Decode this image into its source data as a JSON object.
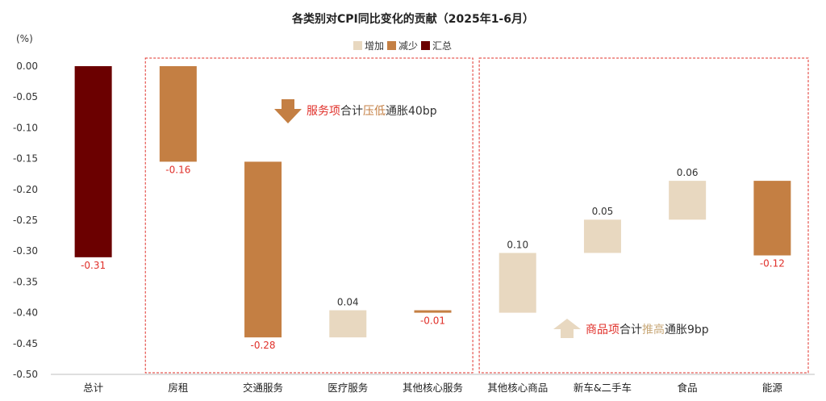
{
  "chart_data": {
    "type": "bar",
    "subtype": "waterfall",
    "title": "各类别对CPI同比变化的贡献（2025年1-6月）",
    "y_unit": "(%)",
    "ylim": [
      -0.5,
      0.0
    ],
    "yticks": [
      "0.00",
      "-0.05",
      "-0.10",
      "-0.15",
      "-0.20",
      "-0.25",
      "-0.30",
      "-0.35",
      "-0.40",
      "-0.45",
      "-0.50"
    ],
    "legend": [
      {
        "name": "增加",
        "color": "#e8d8c0"
      },
      {
        "name": "减少",
        "color": "#c47f43"
      },
      {
        "name": "汇总",
        "color": "#6b0000"
      }
    ],
    "legend_position": "top-center",
    "grid": false,
    "bars": [
      {
        "category": "总计",
        "start": 0.0,
        "end": -0.31,
        "kind": "total",
        "label": "-0.31"
      },
      {
        "category": "房租",
        "start": 0.0,
        "end": -0.155,
        "kind": "decrease",
        "label": "-0.16"
      },
      {
        "category": "交通服务",
        "start": -0.155,
        "end": -0.44,
        "kind": "decrease",
        "label": "-0.28"
      },
      {
        "category": "医疗服务",
        "start": -0.44,
        "end": -0.396,
        "kind": "increase",
        "label": "0.04"
      },
      {
        "category": "其他核心服务",
        "start": -0.396,
        "end": -0.4,
        "kind": "decrease",
        "label": "-0.01"
      },
      {
        "category": "其他核心商品",
        "start": -0.4,
        "end": -0.303,
        "kind": "increase",
        "label": "0.10"
      },
      {
        "category": "新车&二手车",
        "start": -0.303,
        "end": -0.249,
        "kind": "increase",
        "label": "0.05"
      },
      {
        "category": "食品",
        "start": -0.249,
        "end": -0.186,
        "kind": "increase",
        "label": "0.06"
      },
      {
        "category": "能源",
        "start": -0.186,
        "end": -0.307,
        "kind": "decrease",
        "label": "-0.12"
      }
    ],
    "colors": {
      "increase": "#e8d8c0",
      "decrease": "#c47f43",
      "total": "#6b0000",
      "negative_label": "#e0302a",
      "positive_label": "#333333",
      "group_box": "#e0302a"
    },
    "annotations": [
      {
        "id": "services",
        "parts": [
          {
            "text": "服务项",
            "color": "#e0302a"
          },
          {
            "text": "合计",
            "color": "#333333"
          },
          {
            "text": "压低",
            "color": "#c47f43"
          },
          {
            "text": "通胀40bp",
            "color": "#333333"
          }
        ],
        "arrow": "down",
        "arrow_color": "#c47f43"
      },
      {
        "id": "goods",
        "parts": [
          {
            "text": "商品项",
            "color": "#e0302a"
          },
          {
            "text": "合计",
            "color": "#333333"
          },
          {
            "text": "推高",
            "color": "#c8a878"
          },
          {
            "text": "通胀9bp",
            "color": "#333333"
          }
        ],
        "arrow": "up",
        "arrow_color": "#e8d8c0"
      }
    ]
  }
}
